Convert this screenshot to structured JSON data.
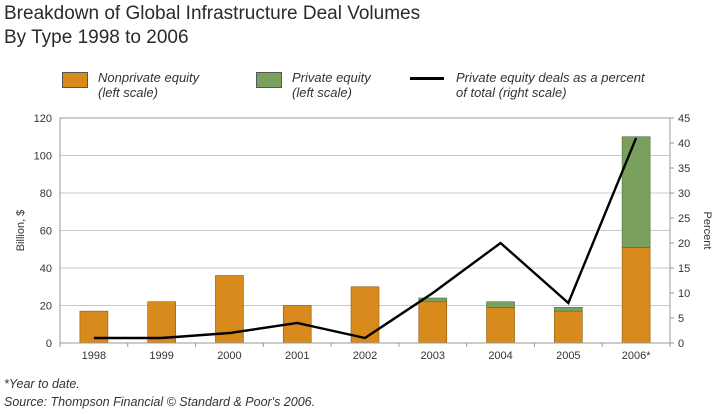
{
  "colors": {
    "nonprivate": "#d98a1c",
    "private": "#7aa060",
    "line": "#000000",
    "frame": "#9a9a9a",
    "grid": "#c8c8c8"
  },
  "title": {
    "line1": "Breakdown of  Global Infrastructure Deal Volumes",
    "line2": "By Type 1998 to 2006"
  },
  "legend": {
    "nonprivate": {
      "line1": "Nonprivate equity",
      "line2": "(left scale)"
    },
    "private": {
      "line1": "Private equity",
      "line2": "(left scale)"
    },
    "percent": {
      "line1": "Private equity deals as a percent",
      "line2": "of total (right scale)"
    }
  },
  "chart_data": {
    "type": "bar",
    "stacked": true,
    "categories": [
      "1998",
      "1999",
      "2000",
      "2001",
      "2002",
      "2003",
      "2004",
      "2005",
      "2006*"
    ],
    "series": [
      {
        "name": "Nonprivate equity",
        "axis": "left",
        "values": [
          17,
          22,
          36,
          20,
          30,
          22,
          19,
          17,
          51
        ]
      },
      {
        "name": "Private equity",
        "axis": "left",
        "values": [
          0,
          0,
          0,
          0,
          0,
          2,
          3,
          2,
          59
        ]
      },
      {
        "name": "Private equity deals as a percent of total",
        "axis": "right",
        "type": "line",
        "values": [
          1,
          1,
          2,
          4,
          1,
          10,
          20,
          8,
          41
        ]
      }
    ],
    "ylabel": "Billion, $",
    "ylim": [
      0,
      120
    ],
    "yticks": [
      "0",
      "20",
      "40",
      "60",
      "80",
      "100",
      "120"
    ],
    "y2label": "Percent",
    "y2lim": [
      0,
      45
    ],
    "y2ticks": [
      "0",
      "5",
      "10",
      "15",
      "20",
      "25",
      "30",
      "35",
      "40",
      "45"
    ],
    "grid": true
  },
  "footnotes": {
    "note": "*Year to date.",
    "source": "Source: Thompson Financial © Standard & Poor's 2006."
  }
}
